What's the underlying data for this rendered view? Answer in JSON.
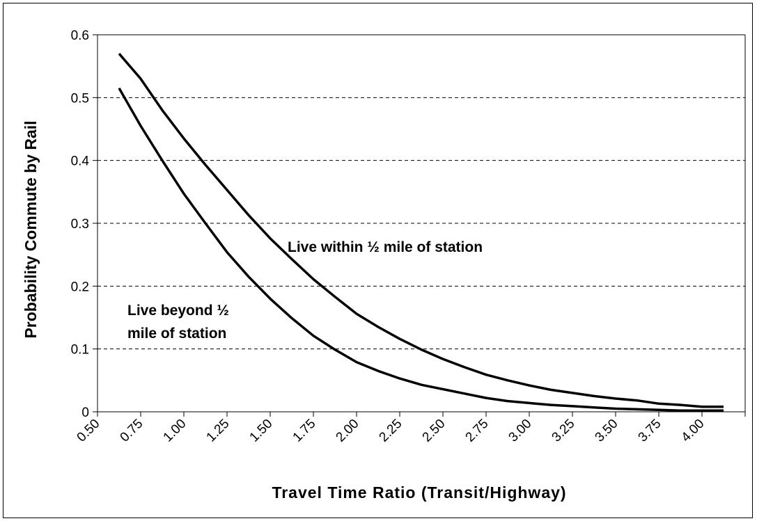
{
  "chart_data": {
    "type": "line",
    "xlabel": "Travel Time Ratio (Transit/Highway)",
    "ylabel": "Probability Commute by Rail",
    "xlim": [
      0.5,
      4.25
    ],
    "ylim": [
      0,
      0.6
    ],
    "x_ticks": [
      "0.50",
      "0.75",
      "1.00",
      "1.25",
      "1.50",
      "1.75",
      "2.00",
      "2.25",
      "2.50",
      "2.75",
      "3.00",
      "3.25",
      "3.50",
      "3.75",
      "4.00"
    ],
    "y_ticks": [
      "0",
      "0.1",
      "0.2",
      "0.3",
      "0.4",
      "0.5",
      "0.6"
    ],
    "grid": "horizontal dashed",
    "legend": "none",
    "annotations": [
      {
        "text": "Live within ½ mile of station",
        "series": 0
      },
      {
        "text": "Live beyond ½",
        "series": 1
      },
      {
        "text": "mile of station",
        "series": 1
      }
    ],
    "series": [
      {
        "x": [
          0.625,
          0.75,
          0.875,
          1.0,
          1.125,
          1.25,
          1.375,
          1.5,
          1.625,
          1.75,
          1.875,
          2.0,
          2.125,
          2.25,
          2.375,
          2.5,
          2.625,
          2.75,
          2.875,
          3.0,
          3.125,
          3.25,
          3.375,
          3.5,
          3.625,
          3.75,
          3.875,
          4.0,
          4.125
        ],
        "y": [
          0.57,
          0.53,
          0.48,
          0.435,
          0.393,
          0.353,
          0.313,
          0.276,
          0.243,
          0.211,
          0.183,
          0.156,
          0.135,
          0.116,
          0.099,
          0.084,
          0.071,
          0.059,
          0.05,
          0.042,
          0.035,
          0.03,
          0.025,
          0.021,
          0.018,
          0.013,
          0.011,
          0.008,
          0.008
        ]
      },
      {
        "x": [
          0.625,
          0.75,
          0.875,
          1.0,
          1.125,
          1.25,
          1.375,
          1.5,
          1.625,
          1.75,
          1.875,
          2.0,
          2.125,
          2.25,
          2.375,
          2.5,
          2.625,
          2.75,
          2.875,
          3.0,
          3.125,
          3.25,
          3.375,
          3.5,
          3.625,
          3.75,
          3.875,
          4.0,
          4.125
        ],
        "y": [
          0.515,
          0.455,
          0.4,
          0.347,
          0.3,
          0.254,
          0.215,
          0.18,
          0.149,
          0.121,
          0.099,
          0.079,
          0.065,
          0.053,
          0.043,
          0.036,
          0.029,
          0.022,
          0.017,
          0.014,
          0.011,
          0.009,
          0.007,
          0.005,
          0.004,
          0.003,
          0.002,
          0.002,
          0.002
        ]
      }
    ]
  }
}
